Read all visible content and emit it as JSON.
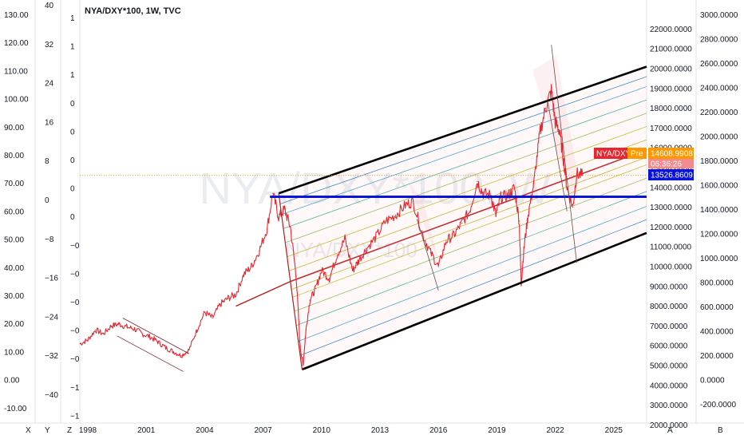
{
  "chart_title": "NYA/DXY*100, 1W, TVC",
  "watermark": {
    "main": "NYA/DXY*100, W",
    "secondary": "NYA/DXY*100"
  },
  "axis_x_labels": [
    "1998",
    "2001",
    "2004",
    "2007",
    "2010",
    "2013",
    "2016",
    "2019",
    "2022",
    "2025"
  ],
  "axis_scale_X": [
    "130.00",
    "120.00",
    "110.00",
    "100.00",
    "90.00",
    "80.00",
    "70.00",
    "60.00",
    "50.00",
    "40.00",
    "30.00",
    "20.00",
    "10.00",
    "0.00",
    "-10.00"
  ],
  "axis_scale_Y": [
    "40",
    "32",
    "24",
    "16",
    "8",
    "0",
    "−8",
    "−16",
    "−24",
    "−32",
    "−40"
  ],
  "axis_scale_Z": [
    "1",
    "1",
    "1",
    "0",
    "0",
    "0",
    "0",
    "0",
    "−0",
    "−0",
    "−0",
    "−0",
    "−0",
    "−1",
    "−1"
  ],
  "axis_scale_A": [
    "22000.0000",
    "21000.0000",
    "20000.0000",
    "19000.0000",
    "18000.0000",
    "17000.0000",
    "16000.0000",
    "15000.0000",
    "14000.0000",
    "13000.0000",
    "12000.0000",
    "11000.0000",
    "10000.0000",
    "9000.0000",
    "8000.0000",
    "7000.0000",
    "6000.0000",
    "5000.0000",
    "4000.0000",
    "3000.0000",
    "2000.0000"
  ],
  "axis_scale_B": [
    "3000.0000",
    "2800.0000",
    "2600.0000",
    "2400.0000",
    "2200.0000",
    "2000.0000",
    "1800.0000",
    "1600.0000",
    "1400.0000",
    "1200.0000",
    "1000.0000",
    "800.0000",
    "600.0000",
    "400.0000",
    "200.0000",
    "0.0000",
    "-200.0000"
  ],
  "bottom_letters": {
    "x": "X",
    "y": "Y",
    "z": "Z",
    "a": "A",
    "b": "B"
  },
  "price_tags": {
    "series_name": "NYA/DXY*",
    "pre": "Pre",
    "last_price": "14608.9908",
    "countdown": "06:36:26",
    "horizontal_level": "13526.8609"
  },
  "colors": {
    "price": "#e8262f",
    "channel": "#000000",
    "median": "#b71c1c",
    "hline": "#0a14d8",
    "pre_tag": "#ff9800"
  },
  "chart_data": {
    "type": "line",
    "title": "NYA/DXY*100, 1W, TVC",
    "y_axis": "A",
    "ylim": [
      1500,
      22500
    ],
    "xlim": [
      1997.5,
      2026.2
    ],
    "x_ticks": [
      1998,
      2001,
      2004,
      2007,
      2010,
      2013,
      2016,
      2019,
      2022,
      2025
    ],
    "series": [
      {
        "x": [
          1997.6,
          1998.0,
          1998.4,
          1998.8,
          1999.2,
          1999.6,
          2000.0,
          2000.4,
          2000.8,
          2001.2,
          2001.6,
          2002.0,
          2002.4,
          2002.8,
          2003.2,
          2003.6,
          2004.0,
          2004.4,
          2004.8,
          2005.2,
          2005.6,
          2006.0,
          2006.4,
          2006.8,
          2007.2,
          2007.5,
          2007.8,
          2008.1,
          2008.4,
          2008.7,
          2008.9,
          2009.05,
          2009.2,
          2009.4,
          2009.7,
          2010.0,
          2010.4,
          2010.8,
          2011.2,
          2011.6,
          2011.9,
          2012.3,
          2012.8,
          2013.3,
          2013.8,
          2014.3,
          2014.7,
          2015.2,
          2015.6,
          2016.0,
          2016.4,
          2016.8,
          2017.2,
          2017.6,
          2018.0,
          2018.3,
          2018.7,
          2018.95,
          2019.2,
          2019.6,
          2019.9,
          2020.15,
          2020.25,
          2020.4,
          2020.6,
          2020.9,
          2021.2,
          2021.5,
          2021.8,
          2022.0,
          2022.2,
          2022.4,
          2022.6,
          2022.9,
          2023.1,
          2023.4
        ],
        "y": [
          6100,
          6300,
          6800,
          6600,
          7000,
          7100,
          6950,
          6850,
          6600,
          6450,
          6200,
          5900,
          5700,
          5500,
          5800,
          6800,
          7700,
          7400,
          8100,
          8400,
          8600,
          9600,
          10000,
          10800,
          11900,
          13700,
          12500,
          12900,
          12000,
          9500,
          6000,
          5000,
          6800,
          8300,
          8900,
          9800,
          9400,
          10600,
          11400,
          9800,
          10300,
          10900,
          11500,
          12300,
          12600,
          13100,
          13300,
          11600,
          10700,
          10000,
          11300,
          11600,
          12200,
          12800,
          14300,
          13700,
          13600,
          12600,
          13500,
          13600,
          14000,
          12300,
          9100,
          11000,
          12600,
          14200,
          16700,
          18000,
          18900,
          17300,
          16900,
          15600,
          14000,
          13000,
          14700,
          14600
        ],
        "series_name": "NYA/DXY*"
      }
    ]
  }
}
